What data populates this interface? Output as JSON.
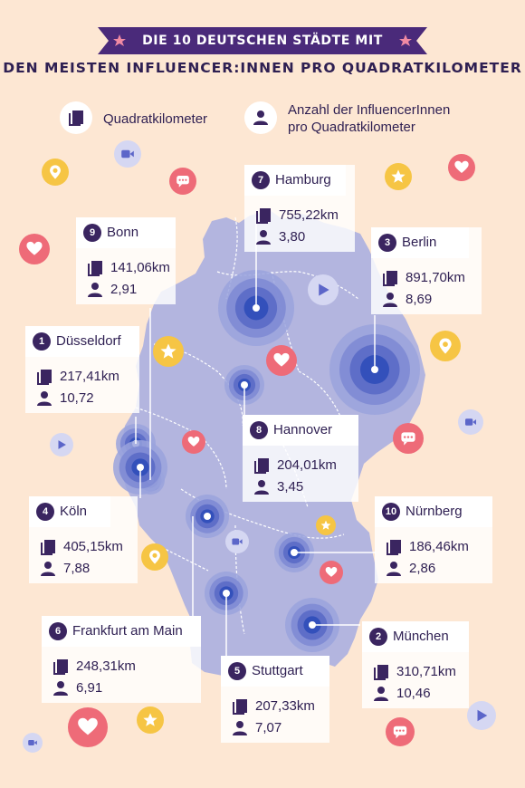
{
  "title": {
    "line1": "DIE 10 DEUTSCHEN STÄDTE MIT",
    "line2": "DEN MEISTEN INFLUENCER:INNEN PRO QUADRATKILOMETER"
  },
  "legend": {
    "area_label": "Quadratkilometer",
    "influencer_label_1": "Anzahl der InfluencerInnen",
    "influencer_label_2": "pro Quadratkilometer"
  },
  "colors": {
    "background": "#fde7d3",
    "map": "#b3b5df",
    "accent_dark": "#3a2560",
    "marker": "#2b4bb8"
  },
  "cities": [
    {
      "rank": "7",
      "name": "Hamburg",
      "area": "755,22km",
      "influencers": "3,80"
    },
    {
      "rank": "9",
      "name": "Bonn",
      "area": "141,06km",
      "influencers": "2,91"
    },
    {
      "rank": "3",
      "name": "Berlin",
      "area": "891,70km",
      "influencers": "8,69"
    },
    {
      "rank": "1",
      "name": "Düsseldorf",
      "area": "217,41km",
      "influencers": "10,72"
    },
    {
      "rank": "8",
      "name": "Hannover",
      "area": "204,01km",
      "influencers": "3,45"
    },
    {
      "rank": "4",
      "name": "Köln",
      "area": "405,15km",
      "influencers": "7,88"
    },
    {
      "rank": "10",
      "name": "Nürnberg",
      "area": "186,46km",
      "influencers": "2,86"
    },
    {
      "rank": "6",
      "name": "Frankfurt am Main",
      "area": "248,31km",
      "influencers": "6,91"
    },
    {
      "rank": "2",
      "name": "München",
      "area": "310,71km",
      "influencers": "10,46"
    },
    {
      "rank": "5",
      "name": "Stuttgart",
      "area": "207,33km",
      "influencers": "7,07"
    }
  ],
  "decorations": [
    "video-icon",
    "location-pin-icon",
    "chat-icon",
    "star-icon",
    "heart-icon",
    "heart-icon",
    "play-icon",
    "star-icon",
    "location-pin-icon",
    "heart-icon",
    "heart-icon",
    "play-icon",
    "chat-icon",
    "video-icon",
    "star-icon",
    "location-pin-icon",
    "video-icon",
    "heart-icon",
    "star-icon",
    "video-icon",
    "heart-icon",
    "chat-icon",
    "play-icon"
  ]
}
